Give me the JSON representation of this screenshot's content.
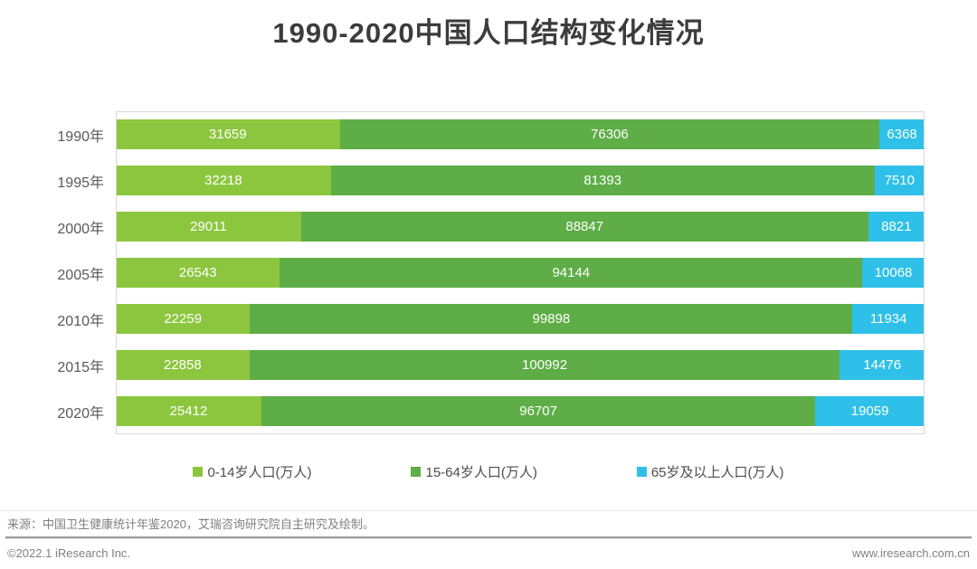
{
  "title": "1990-2020中国人口结构变化情况",
  "chart_data": {
    "type": "bar",
    "orientation": "horizontal",
    "stacked": true,
    "normalized_100_percent": true,
    "title": "1990-2020中国人口结构变化情况",
    "xlabel": "",
    "ylabel": "",
    "grid": false,
    "legend_position": "bottom",
    "unit": "万人",
    "categories": [
      "1990年",
      "1995年",
      "2000年",
      "2005年",
      "2010年",
      "2015年",
      "2020年"
    ],
    "series": [
      {
        "name": "0-14岁人口(万人)",
        "color": "#8cc63f",
        "values": [
          31659,
          32218,
          29011,
          26543,
          22259,
          22858,
          25412
        ]
      },
      {
        "name": "15-64岁人口(万人)",
        "color": "#5ead46",
        "values": [
          76306,
          81393,
          88847,
          94144,
          99898,
          100992,
          96707
        ]
      },
      {
        "name": "65岁及以上人口(万人)",
        "color": "#2ec0e8",
        "values": [
          6368,
          7510,
          8821,
          10068,
          11934,
          14476,
          19059
        ]
      }
    ]
  },
  "footer": {
    "source": "来源：中国卫生健康统计年鉴2020，艾瑞咨询研究院自主研究及绘制。",
    "copyright": "©2022.1 iResearch Inc.",
    "website": "www.iresearch.com.cn"
  }
}
